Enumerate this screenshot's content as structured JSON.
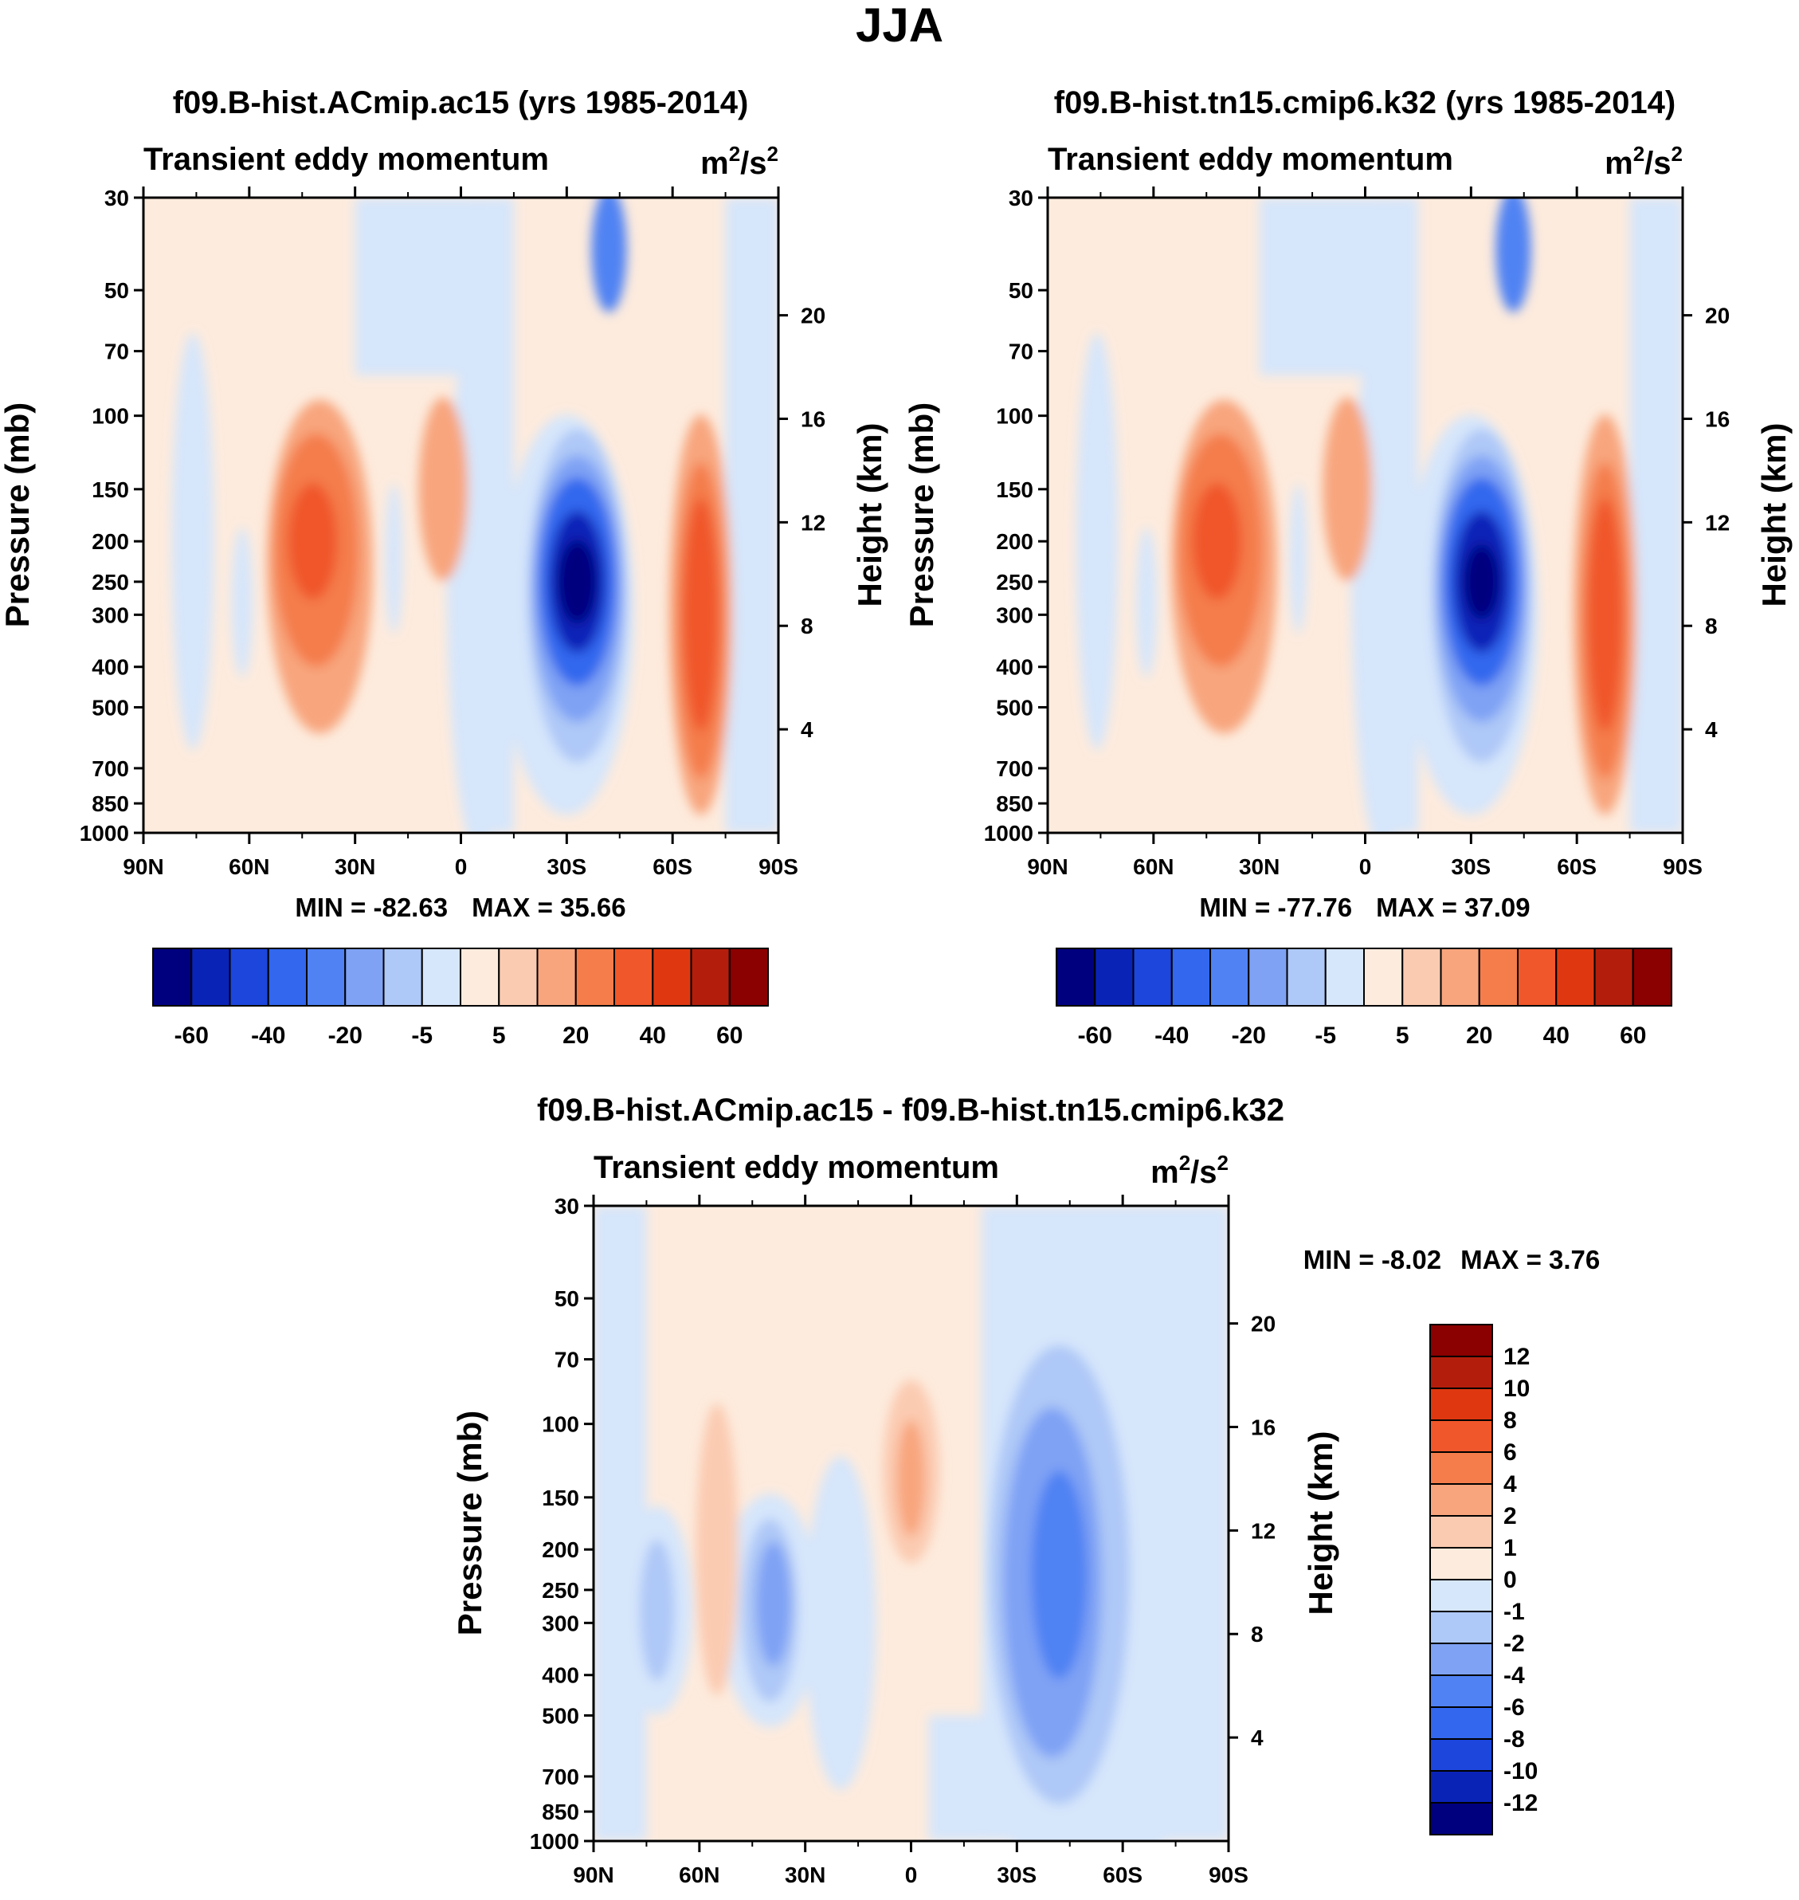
{
  "figure": {
    "title": "JJA"
  },
  "chart_data": [
    {
      "type": "contour",
      "title": "f09.B-hist.ACmip.ac15 (yrs 1985-2014)",
      "left_string": "Transient eddy momentum",
      "units": {
        "base1": "m",
        "sup1": "2",
        "mid": "/s",
        "sup2": "2"
      },
      "xlabel": "",
      "ylabel": "Pressure (mb)",
      "y2label": "Height (km)",
      "x_ticks": [
        "90N",
        "60N",
        "30N",
        "0",
        "30S",
        "60S",
        "90S"
      ],
      "y_ticks": [
        "30",
        "50",
        "70",
        "100",
        "150",
        "200",
        "250",
        "300",
        "400",
        "500",
        "700",
        "850",
        "1000"
      ],
      "y2_ticks": [
        "20",
        "16",
        "12",
        "8",
        "4"
      ],
      "min_label": "MIN = -82.63",
      "max_label": "MAX =  35.66",
      "min": -82.63,
      "max": 35.66,
      "levels": [
        -70,
        -60,
        -50,
        -40,
        -30,
        -20,
        -10,
        -5,
        0,
        5,
        10,
        20,
        30,
        40,
        50,
        60,
        70
      ],
      "labelbar_labels": [
        "-60",
        "-40",
        "-20",
        "-5",
        "5",
        "20",
        "40",
        "60"
      ],
      "features": [
        {
          "lat": -33,
          "p": 250,
          "value": -82.63
        },
        {
          "lat": 42,
          "p": 200,
          "value": 32
        },
        {
          "lat": -68,
          "p": 300,
          "value": 35.66
        },
        {
          "lat": 5,
          "p": 150,
          "value": 18
        }
      ]
    },
    {
      "type": "contour",
      "title": "f09.B-hist.tn15.cmip6.k32 (yrs 1985-2014)",
      "left_string": "Transient eddy momentum",
      "units": {
        "base1": "m",
        "sup1": "2",
        "mid": "/s",
        "sup2": "2"
      },
      "xlabel": "",
      "ylabel": "Pressure (mb)",
      "y2label": "Height (km)",
      "x_ticks": [
        "90N",
        "60N",
        "30N",
        "0",
        "30S",
        "60S",
        "90S"
      ],
      "y_ticks": [
        "30",
        "50",
        "70",
        "100",
        "150",
        "200",
        "250",
        "300",
        "400",
        "500",
        "700",
        "850",
        "1000"
      ],
      "y2_ticks": [
        "20",
        "16",
        "12",
        "8",
        "4"
      ],
      "min_label": "MIN = -77.76",
      "max_label": "MAX =  37.09",
      "min": -77.76,
      "max": 37.09,
      "levels": [
        -70,
        -60,
        -50,
        -40,
        -30,
        -20,
        -10,
        -5,
        0,
        5,
        10,
        20,
        30,
        40,
        50,
        60,
        70
      ],
      "labelbar_labels": [
        "-60",
        "-40",
        "-20",
        "-5",
        "5",
        "20",
        "40",
        "60"
      ],
      "features": [
        {
          "lat": -33,
          "p": 250,
          "value": -77.76
        },
        {
          "lat": 42,
          "p": 200,
          "value": 30
        },
        {
          "lat": -68,
          "p": 300,
          "value": 37.09
        },
        {
          "lat": 5,
          "p": 150,
          "value": 16
        }
      ]
    },
    {
      "type": "contour",
      "title": "f09.B-hist.ACmip.ac15 - f09.B-hist.tn15.cmip6.k32",
      "left_string": "Transient eddy momentum",
      "units": {
        "base1": "m",
        "sup1": "2",
        "mid": "/s",
        "sup2": "2"
      },
      "xlabel": "",
      "ylabel": "Pressure (mb)",
      "y2label": "Height (km)",
      "x_ticks": [
        "90N",
        "60N",
        "30N",
        "0",
        "30S",
        "60S",
        "90S"
      ],
      "y_ticks": [
        "30",
        "50",
        "70",
        "100",
        "150",
        "200",
        "250",
        "300",
        "400",
        "500",
        "700",
        "850",
        "1000"
      ],
      "y2_ticks": [
        "20",
        "16",
        "12",
        "8",
        "4"
      ],
      "min_label": "MIN =  -8.02",
      "max_label": "MAX =   3.76",
      "min": -8.02,
      "max": 3.76,
      "levels": [
        -12,
        -10,
        -8,
        -6,
        -4,
        -2,
        -1,
        0,
        1,
        2,
        4,
        6,
        8,
        10,
        12
      ],
      "labelbar_labels": [
        "12",
        "10",
        "8",
        "6",
        "4",
        "2",
        "1",
        "0",
        "-1",
        "-2",
        "-4",
        "-6",
        "-8",
        "-10",
        "-12"
      ],
      "features": [
        {
          "lat": -40,
          "p": 250,
          "value": -8.02
        },
        {
          "lat": 40,
          "p": 280,
          "value": -5
        },
        {
          "lat": 0,
          "p": 130,
          "value": 3.76
        },
        {
          "lat": 55,
          "p": 220,
          "value": 3
        }
      ]
    }
  ],
  "colors": {
    "palette16": [
      "#00007f",
      "#0a23b7",
      "#1d46dd",
      "#3267ee",
      "#5082f3",
      "#7fa2f4",
      "#aec8f7",
      "#d6e6fb",
      "#fdebdd",
      "#fbcbb1",
      "#f8a57d",
      "#f47d4b",
      "#f0572a",
      "#df3810",
      "#b31e0c",
      "#8b0000"
    ]
  }
}
